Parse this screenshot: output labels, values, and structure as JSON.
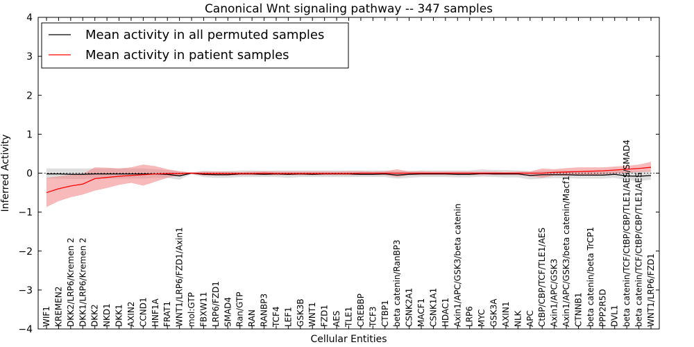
{
  "chart_data": {
    "type": "line",
    "title": "Canonical Wnt signaling pathway -- 347 samples",
    "xlabel": "Cellular Entities",
    "ylabel": "Inferred Activity",
    "ylim": [
      -4,
      4
    ],
    "yticks": [
      -4,
      -3,
      -2,
      -1,
      0,
      1,
      2,
      3,
      4
    ],
    "grid": false,
    "legend_position": "top-left",
    "categories": [
      "WIF1",
      "KREMEN2",
      "DKK2/LRP6/Kremen 2",
      "DKK1/LRP6/Kremen 2",
      "DKK2",
      "NKD1",
      "DKK1",
      "AXIN2",
      "CCND1",
      "HNF1A",
      "FRAT1",
      "WNT1/LRP6/FZD1/Axin1",
      "mol:GTP",
      "FBXW11",
      "LRP6/FZD1",
      "SMAD4",
      "Ran/GTP",
      "RAN",
      "RANBP3",
      "TCF4",
      "LEF1",
      "GSK3B",
      "WNT1",
      "FZD1",
      "AES",
      "TLE1",
      "CREBBP",
      "TCF3",
      "CTBP1",
      "beta catenin/RanBP3",
      "CSNK2A1",
      "MACF1",
      "CSNK1A1",
      "HDAC1",
      "Axin1/APC/GSK3/beta catenin",
      "LRP6",
      "MYC",
      "GSK3A",
      "AXIN1",
      "NLK",
      "APC",
      "CtBP/CBP/TCF/TLE1/AES",
      "Axin1/APC/GSK3",
      "Axin1/APC/GSK3/beta catenin/Macf1",
      "CTNNB1",
      "beta catenin/beta TrCP1",
      "PPP2R5D",
      "DVL1",
      "beta catenin/TCF/CtBP/CBP/TLE1/AES/SMAD4",
      "beta catenin/TCF/CtBP/CBP/TLE1/AES",
      "WNT1/LRP6/FZD1"
    ],
    "series": [
      {
        "name": "Mean activity in all permuted samples",
        "color": "#000000",
        "values": [
          -0.02,
          -0.02,
          -0.03,
          -0.03,
          -0.02,
          -0.02,
          -0.02,
          -0.02,
          -0.02,
          -0.02,
          -0.03,
          -0.07,
          0.0,
          -0.03,
          -0.04,
          -0.04,
          -0.02,
          -0.02,
          -0.03,
          -0.02,
          -0.03,
          -0.02,
          -0.03,
          -0.02,
          -0.02,
          -0.02,
          -0.03,
          -0.03,
          -0.02,
          -0.05,
          -0.03,
          -0.02,
          -0.02,
          -0.02,
          -0.03,
          -0.03,
          -0.01,
          -0.02,
          -0.02,
          -0.02,
          -0.06,
          -0.04,
          -0.04,
          -0.04,
          -0.05,
          -0.05,
          -0.05,
          -0.03,
          -0.07,
          -0.08,
          -0.06
        ],
        "band_upper": [
          0.12,
          0.12,
          0.12,
          0.12,
          0.12,
          0.12,
          0.12,
          0.12,
          0.12,
          0.1,
          0.08,
          0.04,
          0.02,
          0.06,
          0.05,
          0.05,
          0.07,
          0.07,
          0.06,
          0.07,
          0.07,
          0.07,
          0.07,
          0.07,
          0.07,
          0.07,
          0.07,
          0.07,
          0.07,
          0.05,
          0.06,
          0.07,
          0.07,
          0.07,
          0.07,
          0.07,
          0.1,
          0.08,
          0.08,
          0.07,
          0.05,
          0.06,
          0.07,
          0.07,
          0.06,
          0.06,
          0.06,
          0.07,
          0.06,
          0.06,
          0.06
        ],
        "band_lower": [
          -0.14,
          -0.14,
          -0.15,
          -0.15,
          -0.14,
          -0.14,
          -0.14,
          -0.14,
          -0.14,
          -0.12,
          -0.12,
          -0.17,
          -0.02,
          -0.1,
          -0.12,
          -0.12,
          -0.1,
          -0.1,
          -0.1,
          -0.1,
          -0.12,
          -0.1,
          -0.1,
          -0.1,
          -0.1,
          -0.1,
          -0.1,
          -0.1,
          -0.1,
          -0.14,
          -0.12,
          -0.1,
          -0.1,
          -0.1,
          -0.11,
          -0.11,
          -0.09,
          -0.1,
          -0.11,
          -0.11,
          -0.16,
          -0.14,
          -0.13,
          -0.13,
          -0.14,
          -0.14,
          -0.14,
          -0.12,
          -0.18,
          -0.2,
          -0.17
        ]
      },
      {
        "name": "Mean activity in patient samples",
        "color": "#ff0000",
        "values": [
          -0.5,
          -0.4,
          -0.33,
          -0.28,
          -0.14,
          -0.11,
          -0.08,
          -0.06,
          -0.04,
          -0.02,
          -0.01,
          -0.01,
          0.0,
          -0.01,
          -0.01,
          -0.01,
          -0.01,
          -0.01,
          0.0,
          -0.01,
          -0.01,
          -0.01,
          -0.01,
          -0.01,
          -0.01,
          -0.01,
          0.0,
          0.0,
          0.0,
          0.0,
          0.0,
          0.0,
          0.0,
          0.0,
          0.0,
          0.0,
          0.0,
          0.0,
          0.0,
          0.0,
          0.0,
          0.0,
          0.02,
          0.03,
          0.04,
          0.05,
          0.06,
          0.08,
          0.1,
          0.12,
          0.15
        ],
        "band_upper": [
          -0.12,
          -0.08,
          -0.05,
          -0.02,
          0.15,
          0.14,
          0.12,
          0.15,
          0.22,
          0.18,
          0.1,
          0.05,
          0.02,
          0.04,
          0.04,
          0.04,
          0.03,
          0.04,
          0.05,
          0.04,
          0.04,
          0.04,
          0.04,
          0.04,
          0.04,
          0.05,
          0.05,
          0.04,
          0.05,
          0.1,
          0.04,
          0.05,
          0.04,
          0.04,
          0.04,
          0.04,
          0.04,
          0.04,
          0.03,
          0.04,
          0.04,
          0.12,
          0.1,
          0.13,
          0.15,
          0.15,
          0.15,
          0.17,
          0.19,
          0.22,
          0.29
        ],
        "band_lower": [
          -0.87,
          -0.72,
          -0.62,
          -0.55,
          -0.45,
          -0.38,
          -0.3,
          -0.25,
          -0.32,
          -0.22,
          -0.12,
          -0.06,
          -0.02,
          -0.06,
          -0.06,
          -0.06,
          -0.05,
          -0.05,
          -0.05,
          -0.05,
          -0.05,
          -0.05,
          -0.05,
          -0.05,
          -0.05,
          -0.05,
          -0.05,
          -0.05,
          -0.05,
          -0.1,
          -0.05,
          -0.05,
          -0.05,
          -0.05,
          -0.05,
          -0.05,
          -0.05,
          -0.05,
          -0.05,
          -0.05,
          -0.08,
          -0.12,
          -0.06,
          -0.07,
          -0.05,
          -0.04,
          -0.03,
          -0.01,
          0.01,
          0.03,
          0.04
        ]
      }
    ],
    "reference_line": {
      "y": 0,
      "style": "dotted"
    }
  }
}
